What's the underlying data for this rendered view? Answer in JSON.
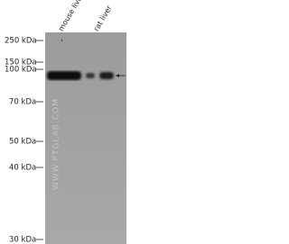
{
  "lanes": [
    "mouse liver",
    "rat liver"
  ],
  "markers": [
    "250 kDa",
    "150 kDa",
    "100 kDa",
    "70 kDa",
    "50 kDa",
    "40 kDa",
    "30 kDa"
  ],
  "watermark": "WWW.PTGLAB.COM"
}
